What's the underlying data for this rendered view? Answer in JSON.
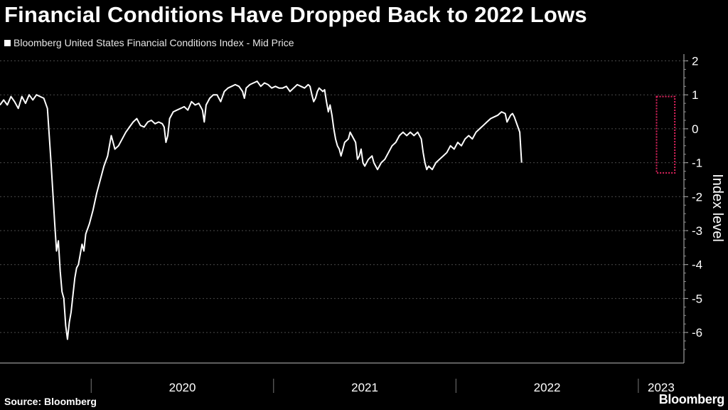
{
  "chart_data": {
    "type": "line",
    "title": "Financial Conditions Have Dropped Back to 2022 Lows",
    "legend": "Bloomberg United States Financial Conditions Index - Mid Price",
    "ylabel": "Index level",
    "xlabel": "",
    "ylim": [
      -6.9,
      2.2
    ],
    "yticks": [
      2,
      1,
      0,
      -1,
      -2,
      -3,
      -4,
      -5,
      -6
    ],
    "ytick_labels": [
      "2",
      "1",
      "0",
      "-1",
      "-2",
      "-3",
      "-4",
      "-5",
      "-6"
    ],
    "year_labels": [
      {
        "label": "2020",
        "start": 2020.0,
        "end": 2021.0
      },
      {
        "label": "2021",
        "start": 2021.0,
        "end": 2022.0
      },
      {
        "label": "2022",
        "start": 2022.0,
        "end": 2023.0
      },
      {
        "label": "2023",
        "start": 2023.0,
        "end": 2023.25
      }
    ],
    "x_range": [
      2019.5,
      2023.25
    ],
    "grid": true,
    "highlight": {
      "x_start": 2023.1,
      "x_end": 2023.2,
      "y_low": -1.3,
      "y_high": 0.95,
      "color": "#e0245e"
    },
    "series": [
      {
        "name": "Bloomberg United States Financial Conditions Index - Mid Price",
        "color": "#ffffff",
        "points": [
          [
            2019.5,
            0.7
          ],
          [
            2019.52,
            0.85
          ],
          [
            2019.54,
            0.7
          ],
          [
            2019.56,
            0.95
          ],
          [
            2019.58,
            0.8
          ],
          [
            2019.6,
            0.6
          ],
          [
            2019.62,
            0.95
          ],
          [
            2019.64,
            0.75
          ],
          [
            2019.66,
            1.0
          ],
          [
            2019.68,
            0.85
          ],
          [
            2019.7,
            1.0
          ],
          [
            2019.72,
            0.95
          ],
          [
            2019.74,
            0.9
          ],
          [
            2019.76,
            0.6
          ],
          [
            2019.78,
            -1.0
          ],
          [
            2019.8,
            -2.8
          ],
          [
            2019.81,
            -3.6
          ],
          [
            2019.82,
            -3.3
          ],
          [
            2019.83,
            -4.2
          ],
          [
            2019.84,
            -4.8
          ],
          [
            2019.85,
            -5.0
          ],
          [
            2019.86,
            -5.8
          ],
          [
            2019.87,
            -6.2
          ],
          [
            2019.88,
            -5.7
          ],
          [
            2019.89,
            -5.4
          ],
          [
            2019.9,
            -4.9
          ],
          [
            2019.91,
            -4.4
          ],
          [
            2019.92,
            -4.1
          ],
          [
            2019.93,
            -4.0
          ],
          [
            2019.95,
            -3.4
          ],
          [
            2019.96,
            -3.6
          ],
          [
            2019.97,
            -3.1
          ],
          [
            2019.99,
            -2.8
          ],
          [
            2020.01,
            -2.4
          ],
          [
            2020.03,
            -1.9
          ],
          [
            2020.05,
            -1.5
          ],
          [
            2020.07,
            -1.1
          ],
          [
            2020.09,
            -0.8
          ],
          [
            2020.1,
            -0.5
          ],
          [
            2020.11,
            -0.2
          ],
          [
            2020.12,
            -0.4
          ],
          [
            2020.13,
            -0.6
          ],
          [
            2020.15,
            -0.5
          ],
          [
            2020.17,
            -0.3
          ],
          [
            2020.19,
            -0.1
          ],
          [
            2020.21,
            0.05
          ],
          [
            2020.23,
            0.2
          ],
          [
            2020.25,
            0.3
          ],
          [
            2020.27,
            0.1
          ],
          [
            2020.29,
            0.05
          ],
          [
            2020.31,
            0.2
          ],
          [
            2020.33,
            0.25
          ],
          [
            2020.35,
            0.15
          ],
          [
            2020.37,
            0.2
          ],
          [
            2020.39,
            0.15
          ],
          [
            2020.4,
            0.05
          ],
          [
            2020.41,
            -0.4
          ],
          [
            2020.42,
            -0.2
          ],
          [
            2020.43,
            0.3
          ],
          [
            2020.45,
            0.5
          ],
          [
            2020.47,
            0.55
          ],
          [
            2020.49,
            0.6
          ],
          [
            2020.51,
            0.65
          ],
          [
            2020.53,
            0.55
          ],
          [
            2020.55,
            0.8
          ],
          [
            2020.57,
            0.7
          ],
          [
            2020.59,
            0.75
          ],
          [
            2020.61,
            0.55
          ],
          [
            2020.62,
            0.2
          ],
          [
            2020.63,
            0.7
          ],
          [
            2020.65,
            0.9
          ],
          [
            2020.67,
            1.0
          ],
          [
            2020.69,
            1.0
          ],
          [
            2020.71,
            0.8
          ],
          [
            2020.73,
            1.1
          ],
          [
            2020.75,
            1.2
          ],
          [
            2020.77,
            1.25
          ],
          [
            2020.79,
            1.3
          ],
          [
            2020.81,
            1.25
          ],
          [
            2020.83,
            1.1
          ],
          [
            2020.84,
            0.9
          ],
          [
            2020.85,
            1.2
          ],
          [
            2020.87,
            1.3
          ],
          [
            2020.89,
            1.35
          ],
          [
            2020.91,
            1.4
          ],
          [
            2020.93,
            1.25
          ],
          [
            2020.95,
            1.35
          ],
          [
            2020.97,
            1.3
          ],
          [
            2020.99,
            1.2
          ],
          [
            2021.01,
            1.25
          ],
          [
            2021.03,
            1.2
          ],
          [
            2021.05,
            1.2
          ],
          [
            2021.07,
            1.25
          ],
          [
            2021.09,
            1.1
          ],
          [
            2021.11,
            1.2
          ],
          [
            2021.13,
            1.3
          ],
          [
            2021.15,
            1.25
          ],
          [
            2021.17,
            1.2
          ],
          [
            2021.19,
            1.3
          ],
          [
            2021.2,
            1.25
          ],
          [
            2021.21,
            1.0
          ],
          [
            2021.22,
            0.8
          ],
          [
            2021.23,
            0.9
          ],
          [
            2021.24,
            1.1
          ],
          [
            2021.25,
            1.2
          ],
          [
            2021.27,
            1.1
          ],
          [
            2021.28,
            1.15
          ],
          [
            2021.29,
            0.8
          ],
          [
            2021.3,
            0.5
          ],
          [
            2021.31,
            0.7
          ],
          [
            2021.32,
            0.4
          ],
          [
            2021.33,
            0.0
          ],
          [
            2021.34,
            -0.3
          ],
          [
            2021.35,
            -0.5
          ],
          [
            2021.36,
            -0.6
          ],
          [
            2021.37,
            -0.8
          ],
          [
            2021.38,
            -0.6
          ],
          [
            2021.39,
            -0.4
          ],
          [
            2021.41,
            -0.3
          ],
          [
            2021.42,
            -0.1
          ],
          [
            2021.43,
            -0.2
          ],
          [
            2021.45,
            -0.4
          ],
          [
            2021.46,
            -0.9
          ],
          [
            2021.47,
            -0.8
          ],
          [
            2021.48,
            -0.6
          ],
          [
            2021.49,
            -1.0
          ],
          [
            2021.5,
            -1.1
          ],
          [
            2021.52,
            -0.9
          ],
          [
            2021.54,
            -0.8
          ],
          [
            2021.55,
            -1.0
          ],
          [
            2021.57,
            -1.2
          ],
          [
            2021.59,
            -1.0
          ],
          [
            2021.61,
            -0.9
          ],
          [
            2021.63,
            -0.7
          ],
          [
            2021.65,
            -0.5
          ],
          [
            2021.67,
            -0.4
          ],
          [
            2021.69,
            -0.2
          ],
          [
            2021.71,
            -0.1
          ],
          [
            2021.73,
            -0.2
          ],
          [
            2021.75,
            -0.1
          ],
          [
            2021.77,
            -0.2
          ],
          [
            2021.79,
            -0.1
          ],
          [
            2021.81,
            -0.3
          ],
          [
            2021.82,
            -0.7
          ],
          [
            2021.83,
            -1.0
          ],
          [
            2021.84,
            -1.2
          ],
          [
            2021.85,
            -1.1
          ],
          [
            2021.87,
            -1.2
          ],
          [
            2021.89,
            -1.0
          ],
          [
            2021.91,
            -0.9
          ],
          [
            2021.93,
            -0.8
          ],
          [
            2021.95,
            -0.7
          ],
          [
            2021.97,
            -0.5
          ],
          [
            2021.99,
            -0.6
          ],
          [
            2022.01,
            -0.4
          ],
          [
            2022.03,
            -0.5
          ],
          [
            2022.05,
            -0.3
          ],
          [
            2022.07,
            -0.2
          ],
          [
            2022.09,
            -0.3
          ],
          [
            2022.11,
            -0.1
          ],
          [
            2022.13,
            0.0
          ],
          [
            2022.15,
            0.1
          ],
          [
            2022.17,
            0.2
          ],
          [
            2022.19,
            0.3
          ],
          [
            2022.21,
            0.35
          ],
          [
            2022.23,
            0.4
          ],
          [
            2022.25,
            0.5
          ],
          [
            2022.27,
            0.45
          ],
          [
            2022.28,
            0.2
          ],
          [
            2022.29,
            0.3
          ],
          [
            2022.3,
            0.4
          ],
          [
            2022.31,
            0.45
          ],
          [
            2022.32,
            0.35
          ],
          [
            2022.33,
            0.2
          ],
          [
            2022.35,
            -0.1
          ],
          [
            2022.36,
            -1.0
          ]
        ]
      }
    ]
  },
  "footer": {
    "source": "Source: Bloomberg",
    "logo": "Bloomberg"
  }
}
